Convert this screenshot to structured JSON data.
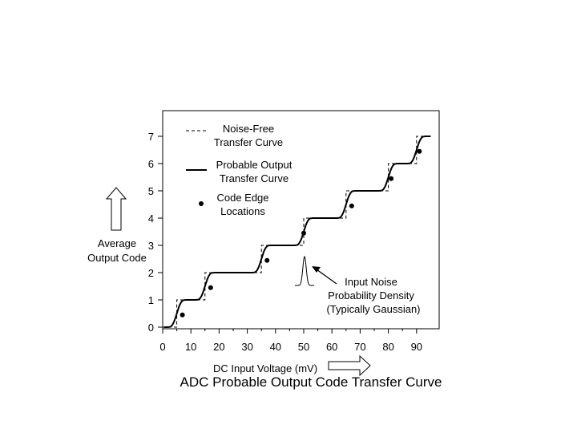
{
  "chart_data": {
    "type": "line",
    "title": "ADC Probable Output Code Transfer Curve",
    "xlabel": "DC Input Voltage (mV)",
    "ylabel_lines": [
      "Average",
      "Output Code"
    ],
    "xlim": [
      0,
      95
    ],
    "ylim": [
      0,
      8
    ],
    "x_ticks": [
      "0",
      "10",
      "20",
      "30",
      "40",
      "50",
      "60",
      "70",
      "80",
      "90"
    ],
    "y_ticks": [
      "0",
      "1",
      "2",
      "3",
      "4",
      "5",
      "6",
      "7"
    ],
    "series": [
      {
        "legend_lines": [
          "Noise-Free",
          "Transfer Curve"
        ],
        "style": "dashed",
        "code_transitions_x": [
          5,
          15,
          35,
          50,
          65,
          80,
          90
        ]
      },
      {
        "legend_lines": [
          "Probable Output",
          "Transfer Curve"
        ],
        "style": "solid",
        "code_transitions_x": [
          5,
          15,
          35,
          50,
          65,
          80,
          90
        ]
      },
      {
        "legend_lines": [
          "Code Edge",
          "Locations"
        ],
        "style": "points",
        "points": [
          {
            "x": 7,
            "y": 0.45
          },
          {
            "x": 17,
            "y": 1.45
          },
          {
            "x": 37,
            "y": 2.45
          },
          {
            "x": 50,
            "y": 3.45
          },
          {
            "x": 67,
            "y": 4.45
          },
          {
            "x": 81,
            "y": 5.45
          },
          {
            "x": 91,
            "y": 6.45
          }
        ]
      }
    ],
    "annotation_lines": [
      "Input Noise",
      "Probability Density",
      "(Typically Gaussian)"
    ],
    "grid": false,
    "legend_position": "inside-top-left"
  }
}
